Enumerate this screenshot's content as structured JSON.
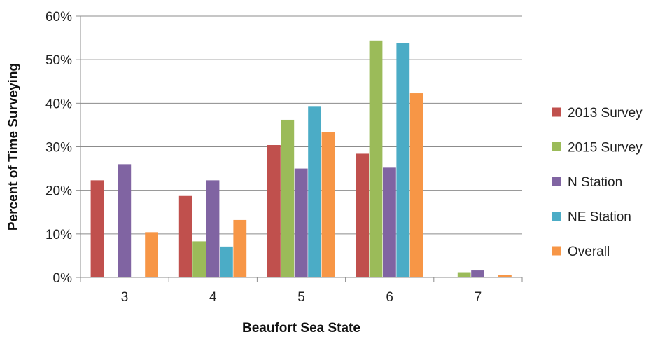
{
  "chart_data": {
    "type": "bar",
    "xlabel": "Beaufort Sea State",
    "ylabel": "Percent of Time Surveying",
    "categories": [
      "3",
      "4",
      "5",
      "6",
      "7"
    ],
    "ylim": [
      0,
      60
    ],
    "yticks": [
      0,
      10,
      20,
      30,
      40,
      50,
      60
    ],
    "ytick_labels": [
      "0%",
      "10%",
      "20%",
      "30%",
      "40%",
      "50%",
      "60%"
    ],
    "grid": true,
    "legend_position": "right",
    "series": [
      {
        "name": "2013 Survey",
        "color": "#c0504d",
        "values": [
          22.3,
          18.7,
          30.4,
          28.4,
          0
        ]
      },
      {
        "name": "2015 Survey",
        "color": "#9bbb59",
        "values": [
          0,
          8.3,
          36.2,
          54.4,
          1.2
        ]
      },
      {
        "name": "N Station",
        "color": "#8064a2",
        "values": [
          26.0,
          22.3,
          25.0,
          25.2,
          1.6
        ]
      },
      {
        "name": "NE Station",
        "color": "#4bacc6",
        "values": [
          0,
          7.1,
          39.2,
          53.8,
          0
        ]
      },
      {
        "name": "Overall",
        "color": "#f79646",
        "values": [
          10.4,
          13.2,
          33.4,
          42.3,
          0.6
        ]
      }
    ]
  }
}
